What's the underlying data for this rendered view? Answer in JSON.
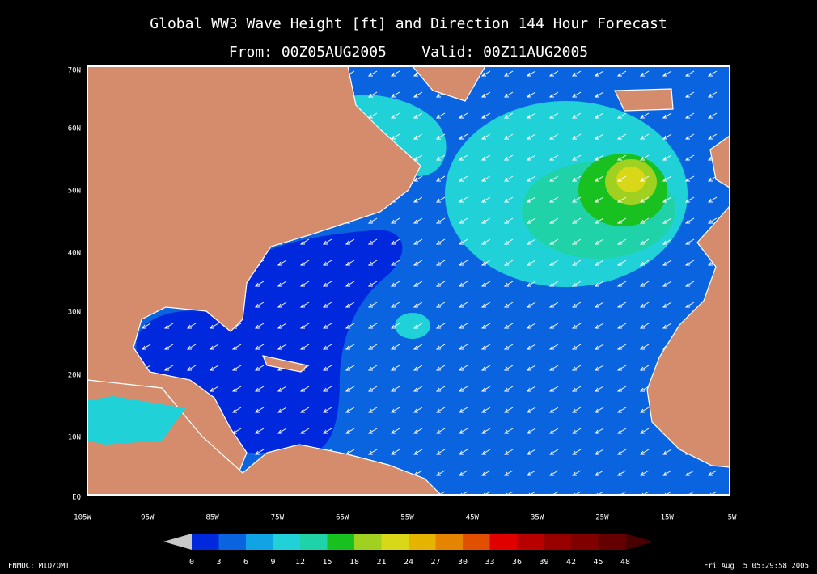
{
  "header": {
    "title": "Global WW3 Wave Height [ft] and Direction 144 Hour Forecast",
    "subtitle": "From: 00Z05AUG2005    Valid: 00Z11AUG2005"
  },
  "map": {
    "lat_labels": [
      "70N",
      "60N",
      "50N",
      "40N",
      "30N",
      "20N",
      "10N",
      "EQ"
    ],
    "lon_labels": [
      "105W",
      "95W",
      "85W",
      "75W",
      "65W",
      "55W",
      "45W",
      "35W",
      "25W",
      "15W",
      "5W"
    ]
  },
  "colorbar": {
    "ticks": [
      0,
      3,
      6,
      9,
      12,
      15,
      18,
      21,
      24,
      27,
      30,
      33,
      36,
      39,
      42,
      45,
      48
    ],
    "colors": [
      "#0028dc",
      "#0a64e0",
      "#10a4e4",
      "#20d2d8",
      "#20d2a8",
      "#18c020",
      "#a0d020",
      "#d8d818",
      "#e4b400",
      "#e48400",
      "#e05000",
      "#e00000",
      "#b80000",
      "#980000",
      "#800000",
      "#640000"
    ],
    "under_color": "#c8c8c8",
    "over_color": "#4a0000"
  },
  "footer": {
    "left": "FNMOC: MID/OMT",
    "right": "Fri Aug  5 05:29:58 2005"
  }
}
